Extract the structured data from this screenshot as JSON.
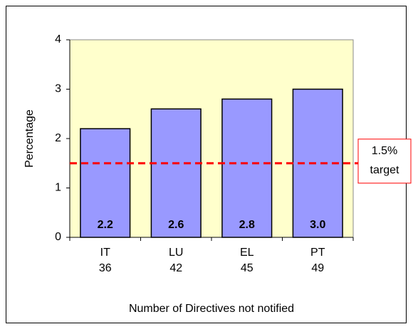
{
  "chart_data": {
    "type": "bar",
    "y_label": "Percentage",
    "x_label": "Number of Directives not notified",
    "categories": [
      "IT",
      "LU",
      "EL",
      "PT"
    ],
    "counts": [
      36,
      42,
      45,
      49
    ],
    "values": [
      2.2,
      2.6,
      2.8,
      3.0
    ],
    "value_labels": [
      "2.2",
      "2.6",
      "2.8",
      "3.0"
    ],
    "color": "#9999ff",
    "plot_background": "#ffffcc",
    "ylim": [
      0,
      4
    ],
    "yticks": [
      0,
      1,
      2,
      3,
      4
    ],
    "target": {
      "value": 1.5,
      "lines": [
        "1.5%",
        "target"
      ],
      "color": "#ff0000"
    }
  }
}
